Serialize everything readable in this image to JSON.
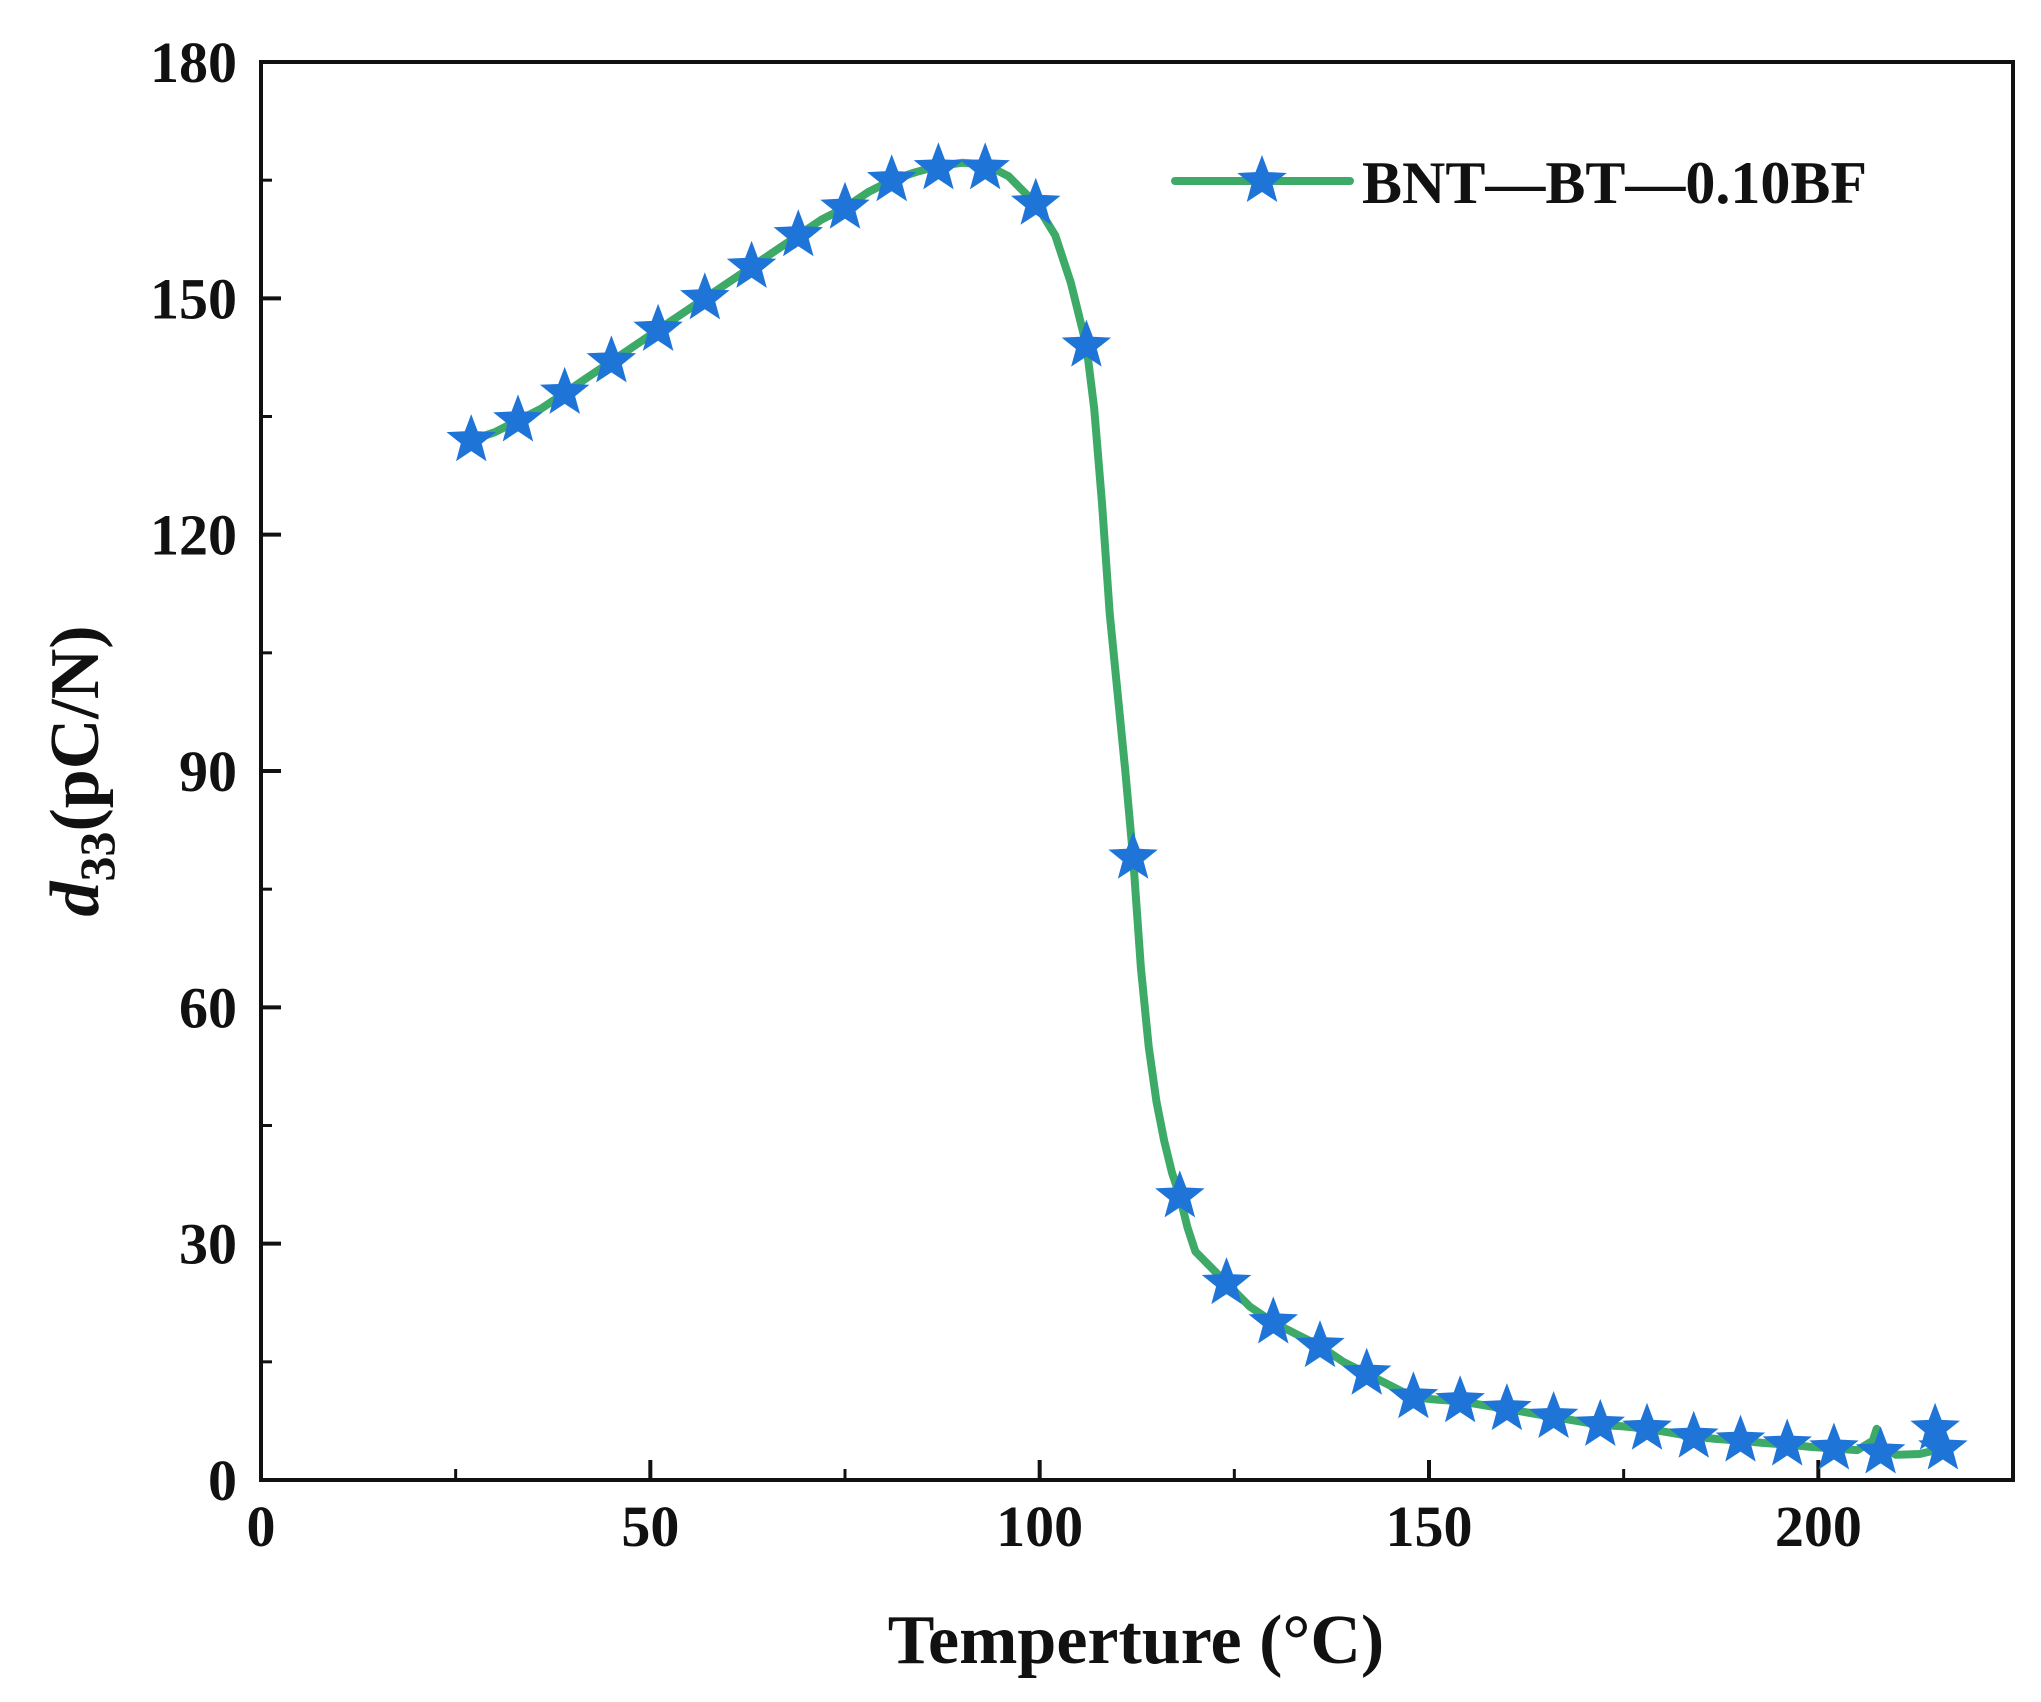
{
  "chart_data": {
    "type": "line",
    "title": "",
    "xlabel": "Temperture (°C)",
    "ylabel_main": "d",
    "ylabel_sub": "33",
    "ylabel_unit": "(pC/N)",
    "xlim": [
      0,
      225
    ],
    "ylim": [
      0,
      180
    ],
    "x_ticks": [
      0,
      50,
      100,
      150,
      200
    ],
    "x_tick_labels": [
      "0",
      "50",
      "100",
      "150",
      "200"
    ],
    "x_minor_ticks": [
      25,
      75,
      125,
      175
    ],
    "y_ticks": [
      0,
      30,
      60,
      90,
      120,
      150,
      180
    ],
    "y_tick_labels": [
      "0",
      "30",
      "60",
      "90",
      "120",
      "150",
      "180"
    ],
    "y_minor_ticks": [
      15,
      45,
      75,
      105,
      135,
      165
    ],
    "grid": false,
    "legend_position": "top-right",
    "colors": {
      "line": "#3daa68",
      "marker": "#1f74d8",
      "axis": "#111111"
    },
    "series": [
      {
        "name": "BNT—BT—0.10BF",
        "marker": "star",
        "points": [
          {
            "x": 27,
            "y": 132
          },
          {
            "x": 33,
            "y": 134.5
          },
          {
            "x": 39,
            "y": 138
          },
          {
            "x": 45,
            "y": 142
          },
          {
            "x": 51,
            "y": 146
          },
          {
            "x": 57,
            "y": 150
          },
          {
            "x": 63,
            "y": 154
          },
          {
            "x": 69,
            "y": 158
          },
          {
            "x": 75,
            "y": 161.5
          },
          {
            "x": 81,
            "y": 165
          },
          {
            "x": 87,
            "y": 166.5
          },
          {
            "x": 93,
            "y": 166.5
          },
          {
            "x": 99.5,
            "y": 162
          },
          {
            "x": 106,
            "y": 144
          },
          {
            "x": 112,
            "y": 79
          },
          {
            "x": 118,
            "y": 36
          },
          {
            "x": 124,
            "y": 25
          },
          {
            "x": 130,
            "y": 20
          },
          {
            "x": 136,
            "y": 17
          },
          {
            "x": 142,
            "y": 13.5
          },
          {
            "x": 148,
            "y": 10.5
          },
          {
            "x": 154,
            "y": 10
          },
          {
            "x": 160,
            "y": 9
          },
          {
            "x": 166,
            "y": 8
          },
          {
            "x": 172,
            "y": 7
          },
          {
            "x": 178,
            "y": 6.5
          },
          {
            "x": 184,
            "y": 5.5
          },
          {
            "x": 190,
            "y": 5
          },
          {
            "x": 196,
            "y": 4.5
          },
          {
            "x": 202,
            "y": 4
          },
          {
            "x": 208,
            "y": 3.5
          },
          {
            "x": 215,
            "y": 6.5
          },
          {
            "x": 216,
            "y": 4
          }
        ],
        "curve": [
          [
            27,
            132
          ],
          [
            30,
            133
          ],
          [
            33,
            134.5
          ],
          [
            36,
            136
          ],
          [
            39,
            138
          ],
          [
            42,
            140
          ],
          [
            45,
            142
          ],
          [
            48,
            144
          ],
          [
            51,
            146
          ],
          [
            54,
            148
          ],
          [
            57,
            150
          ],
          [
            60,
            152
          ],
          [
            63,
            154
          ],
          [
            66,
            156
          ],
          [
            69,
            158
          ],
          [
            72,
            160
          ],
          [
            75,
            161.5
          ],
          [
            78,
            163.5
          ],
          [
            81,
            165
          ],
          [
            84,
            166
          ],
          [
            87,
            166.8
          ],
          [
            90,
            167.2
          ],
          [
            93,
            167
          ],
          [
            96,
            165.5
          ],
          [
            99.5,
            162
          ],
          [
            102,
            158
          ],
          [
            104,
            152
          ],
          [
            106,
            144
          ],
          [
            107,
            136
          ],
          [
            108,
            124
          ],
          [
            109,
            110
          ],
          [
            110,
            100
          ],
          [
            111,
            90
          ],
          [
            112,
            79
          ],
          [
            113,
            65
          ],
          [
            114,
            55
          ],
          [
            115,
            48
          ],
          [
            116,
            43
          ],
          [
            117,
            39
          ],
          [
            118,
            36
          ],
          [
            119,
            32
          ],
          [
            120,
            29
          ],
          [
            122,
            27
          ],
          [
            124,
            25
          ],
          [
            127,
            22
          ],
          [
            130,
            20
          ],
          [
            133,
            18.5
          ],
          [
            136,
            17
          ],
          [
            139,
            15
          ],
          [
            142,
            13.5
          ],
          [
            145,
            12
          ],
          [
            148,
            10.5
          ],
          [
            151,
            10.2
          ],
          [
            154,
            10
          ],
          [
            157,
            9.5
          ],
          [
            160,
            9
          ],
          [
            163,
            8.5
          ],
          [
            166,
            8
          ],
          [
            169,
            7.5
          ],
          [
            172,
            7
          ],
          [
            175,
            6.8
          ],
          [
            178,
            6.5
          ],
          [
            181,
            6
          ],
          [
            184,
            5.5
          ],
          [
            187,
            5.2
          ],
          [
            190,
            5
          ],
          [
            193,
            4.7
          ],
          [
            196,
            4.5
          ],
          [
            199,
            4.2
          ],
          [
            202,
            4
          ],
          [
            205,
            3.8
          ],
          [
            207,
            5
          ],
          [
            207.5,
            6.5
          ],
          [
            208.5,
            4
          ],
          [
            210,
            3.2
          ],
          [
            213,
            3.3
          ],
          [
            216,
            4
          ]
        ]
      }
    ]
  }
}
